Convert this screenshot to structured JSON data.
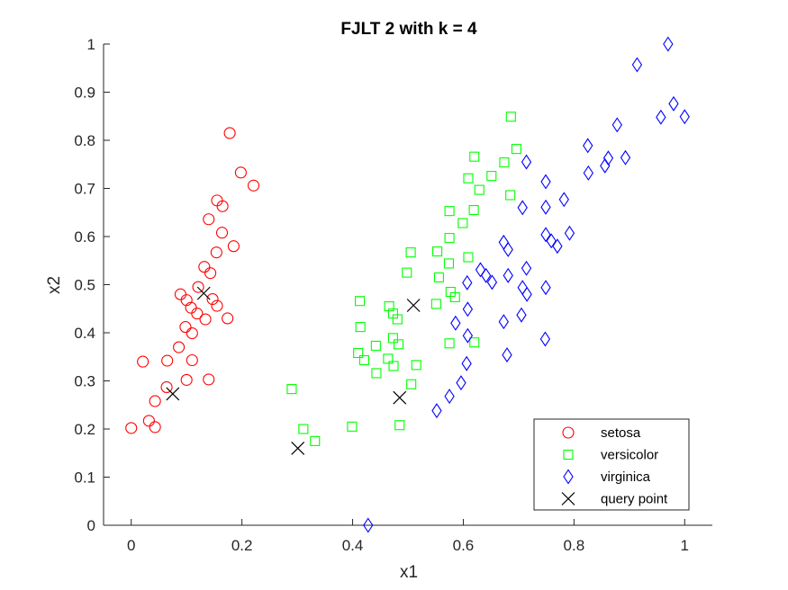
{
  "chart_data": {
    "type": "scatter",
    "title": "FJLT 2 with k = 4",
    "xlabel": "x1",
    "ylabel": "x2",
    "xlim": [
      -0.05,
      1.05
    ],
    "ylim": [
      0,
      1
    ],
    "x_ticks": [
      0,
      0.2,
      0.4,
      0.6,
      0.8,
      1
    ],
    "x_tick_labels": [
      "0",
      "0.2",
      "0.4",
      "0.6",
      "0.8",
      "1"
    ],
    "y_ticks": [
      0,
      0.1,
      0.2,
      0.3,
      0.4,
      0.5,
      0.6,
      0.7,
      0.8,
      0.9,
      1
    ],
    "y_tick_labels": [
      "0",
      "0.1",
      "0.2",
      "0.3",
      "0.4",
      "0.5",
      "0.6",
      "0.7",
      "0.8",
      "0.9",
      "1"
    ],
    "grid": false,
    "legend_position": "bottom-right",
    "series": [
      {
        "name": "setosa",
        "marker": "circle",
        "color": "#ff0000",
        "points": [
          [
            0.178,
            0.815
          ],
          [
            0.198,
            0.733
          ],
          [
            0.221,
            0.706
          ],
          [
            0.155,
            0.675
          ],
          [
            0.165,
            0.663
          ],
          [
            0.14,
            0.636
          ],
          [
            0.164,
            0.608
          ],
          [
            0.185,
            0.58
          ],
          [
            0.154,
            0.567
          ],
          [
            0.132,
            0.537
          ],
          [
            0.143,
            0.524
          ],
          [
            0.121,
            0.495
          ],
          [
            0.089,
            0.48
          ],
          [
            0.1,
            0.468
          ],
          [
            0.108,
            0.452
          ],
          [
            0.119,
            0.44
          ],
          [
            0.134,
            0.428
          ],
          [
            0.155,
            0.456
          ],
          [
            0.147,
            0.47
          ],
          [
            0.174,
            0.43
          ],
          [
            0.098,
            0.412
          ],
          [
            0.11,
            0.399
          ],
          [
            0.086,
            0.37
          ],
          [
            0.11,
            0.343
          ],
          [
            0.065,
            0.342
          ],
          [
            0.021,
            0.34
          ],
          [
            0.1,
            0.302
          ],
          [
            0.14,
            0.303
          ],
          [
            0.064,
            0.287
          ],
          [
            0.043,
            0.258
          ],
          [
            0.032,
            0.217
          ],
          [
            0.043,
            0.204
          ],
          [
            0.0,
            0.202
          ]
        ]
      },
      {
        "name": "versicolor",
        "marker": "square",
        "color": "#00ff00",
        "points": [
          [
            0.686,
            0.849
          ],
          [
            0.696,
            0.782
          ],
          [
            0.62,
            0.766
          ],
          [
            0.674,
            0.754
          ],
          [
            0.651,
            0.726
          ],
          [
            0.609,
            0.721
          ],
          [
            0.629,
            0.697
          ],
          [
            0.685,
            0.686
          ],
          [
            0.619,
            0.655
          ],
          [
            0.575,
            0.653
          ],
          [
            0.599,
            0.628
          ],
          [
            0.575,
            0.597
          ],
          [
            0.553,
            0.569
          ],
          [
            0.505,
            0.567
          ],
          [
            0.574,
            0.544
          ],
          [
            0.609,
            0.557
          ],
          [
            0.498,
            0.525
          ],
          [
            0.556,
            0.515
          ],
          [
            0.577,
            0.485
          ],
          [
            0.585,
            0.474
          ],
          [
            0.413,
            0.466
          ],
          [
            0.466,
            0.455
          ],
          [
            0.473,
            0.44
          ],
          [
            0.481,
            0.428
          ],
          [
            0.551,
            0.46
          ],
          [
            0.414,
            0.412
          ],
          [
            0.473,
            0.389
          ],
          [
            0.483,
            0.376
          ],
          [
            0.442,
            0.373
          ],
          [
            0.41,
            0.358
          ],
          [
            0.464,
            0.346
          ],
          [
            0.421,
            0.343
          ],
          [
            0.474,
            0.331
          ],
          [
            0.515,
            0.333
          ],
          [
            0.443,
            0.316
          ],
          [
            0.506,
            0.293
          ],
          [
            0.575,
            0.378
          ],
          [
            0.62,
            0.38
          ],
          [
            0.29,
            0.283
          ],
          [
            0.399,
            0.205
          ],
          [
            0.485,
            0.208
          ],
          [
            0.311,
            0.2
          ],
          [
            0.332,
            0.175
          ]
        ]
      },
      {
        "name": "virginica",
        "marker": "diamond",
        "color": "#0000ff",
        "points": [
          [
            0.97,
            1.0
          ],
          [
            0.914,
            0.957
          ],
          [
            0.98,
            0.876
          ],
          [
            1.0,
            0.849
          ],
          [
            0.957,
            0.848
          ],
          [
            0.878,
            0.832
          ],
          [
            0.825,
            0.789
          ],
          [
            0.862,
            0.763
          ],
          [
            0.893,
            0.764
          ],
          [
            0.856,
            0.747
          ],
          [
            0.714,
            0.755
          ],
          [
            0.826,
            0.732
          ],
          [
            0.749,
            0.714
          ],
          [
            0.782,
            0.677
          ],
          [
            0.707,
            0.66
          ],
          [
            0.749,
            0.661
          ],
          [
            0.792,
            0.607
          ],
          [
            0.749,
            0.604
          ],
          [
            0.759,
            0.591
          ],
          [
            0.77,
            0.58
          ],
          [
            0.673,
            0.588
          ],
          [
            0.681,
            0.573
          ],
          [
            0.631,
            0.531
          ],
          [
            0.641,
            0.519
          ],
          [
            0.652,
            0.505
          ],
          [
            0.607,
            0.504
          ],
          [
            0.714,
            0.534
          ],
          [
            0.681,
            0.519
          ],
          [
            0.707,
            0.494
          ],
          [
            0.749,
            0.494
          ],
          [
            0.715,
            0.48
          ],
          [
            0.586,
            0.42
          ],
          [
            0.608,
            0.449
          ],
          [
            0.673,
            0.423
          ],
          [
            0.705,
            0.437
          ],
          [
            0.608,
            0.394
          ],
          [
            0.748,
            0.387
          ],
          [
            0.679,
            0.354
          ],
          [
            0.606,
            0.336
          ],
          [
            0.596,
            0.296
          ],
          [
            0.575,
            0.268
          ],
          [
            0.552,
            0.238
          ],
          [
            0.428,
            0.0
          ]
        ]
      },
      {
        "name": "query point",
        "marker": "x",
        "color": "#000000",
        "points": [
          [
            0.131,
            0.482
          ],
          [
            0.51,
            0.457
          ],
          [
            0.485,
            0.265
          ],
          [
            0.075,
            0.273
          ],
          [
            0.301,
            0.16
          ]
        ]
      }
    ]
  }
}
